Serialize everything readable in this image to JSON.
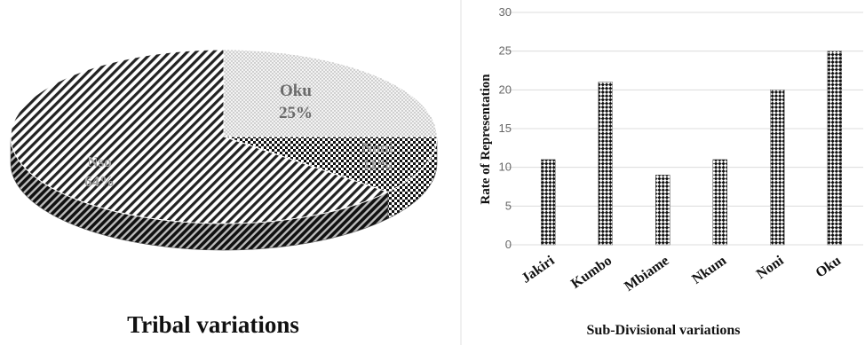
{
  "chart_data": [
    {
      "type": "pie",
      "title": "Tribal variations",
      "slices": [
        {
          "label": "Nso",
          "value": 64,
          "value_label": "64%",
          "pattern": "diagonal-stripes"
        },
        {
          "label": "Oku",
          "value": 25,
          "value_label": "25%",
          "pattern": "dots"
        },
        {
          "label": "Noni",
          "value": 11,
          "value_label": "11%",
          "pattern": "checker"
        }
      ]
    },
    {
      "type": "bar",
      "title": "",
      "categories": [
        "Jakiri",
        "Kumbo",
        "Mbiame",
        "Nkum",
        "Noni",
        "Oku"
      ],
      "values": [
        11,
        21,
        9,
        11,
        20,
        25
      ],
      "xlabel": "Sub-Divisional variations",
      "ylabel": "Rate of Representation",
      "ylim": [
        0,
        30
      ],
      "yticks": [
        0,
        5,
        10,
        15,
        20,
        25,
        30
      ],
      "bar_pattern": "checker",
      "grid": true
    }
  ]
}
